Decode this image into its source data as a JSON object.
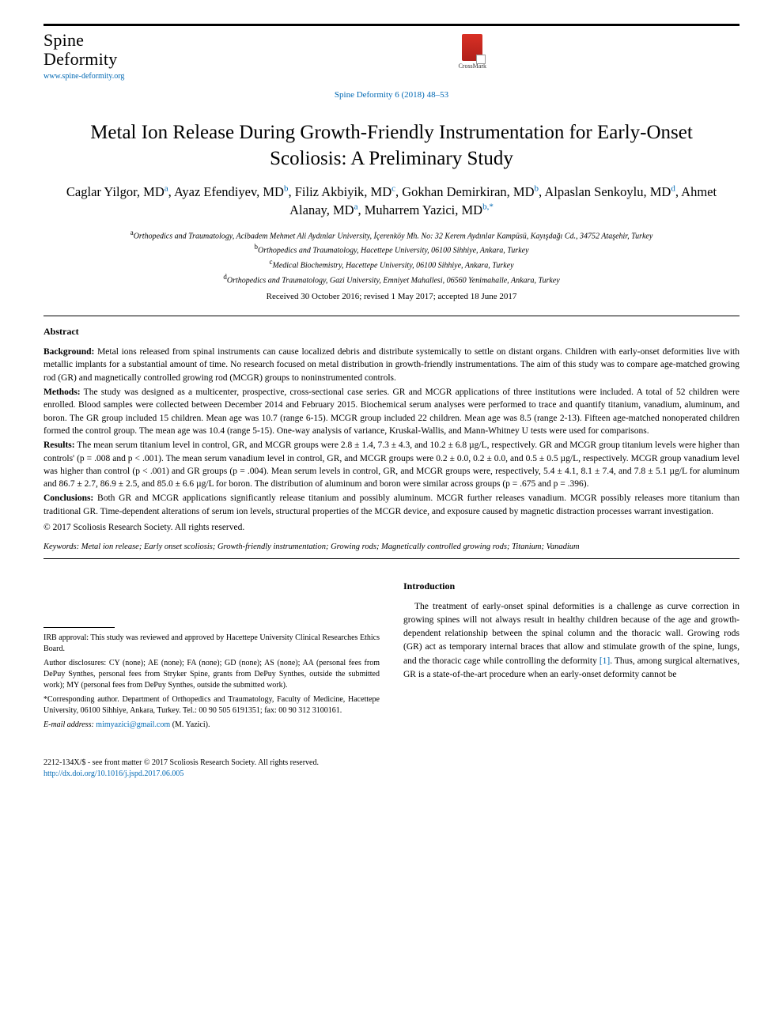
{
  "journal": {
    "name_line1": "Spine",
    "name_line2": "Deformity",
    "url": "www.spine-deformity.org"
  },
  "crossmark": {
    "label": "CrossMark"
  },
  "citation": "Spine Deformity 6 (2018) 48–53",
  "title": "Metal Ion Release During Growth-Friendly Instrumentation for Early-Onset Scoliosis: A Preliminary Study",
  "authors": [
    {
      "name": "Caglar Yilgor, MD",
      "aff": "a"
    },
    {
      "name": "Ayaz Efendiyev, MD",
      "aff": "b"
    },
    {
      "name": "Filiz Akbiyik, MD",
      "aff": "c"
    },
    {
      "name": "Gokhan Demirkiran, MD",
      "aff": "b"
    },
    {
      "name": "Alpaslan Senkoylu, MD",
      "aff": "d"
    },
    {
      "name": "Ahmet Alanay, MD",
      "aff": "a"
    },
    {
      "name": "Muharrem Yazici, MD",
      "aff": "b,*"
    }
  ],
  "affiliations": {
    "a": "Orthopedics and Traumatology, Acibadem Mehmet Ali Aydınlar University, İçerenköy Mh. No: 32 Kerem Aydınlar Kampüsü, Kayışdağı Cd., 34752 Ataşehir, Turkey",
    "b": "Orthopedics and Traumatology, Hacettepe University, 06100 Sihhiye, Ankara, Turkey",
    "c": "Medical Biochemistry, Hacettepe University, 06100 Sihhiye, Ankara, Turkey",
    "d": "Orthopedics and Traumatology, Gazi University, Emniyet Mahallesi, 06560 Yenimahalle, Ankara, Turkey"
  },
  "history": "Received 30 October 2016; revised 1 May 2017; accepted 18 June 2017",
  "abstract": {
    "label": "Abstract",
    "background_label": "Background:",
    "background": " Metal ions released from spinal instruments can cause localized debris and distribute systemically to settle on distant organs. Children with early-onset deformities live with metallic implants for a substantial amount of time. No research focused on metal distribution in growth-friendly instrumentations. The aim of this study was to compare age-matched growing rod (GR) and magnetically controlled growing rod (MCGR) groups to noninstrumented controls.",
    "methods_label": "Methods:",
    "methods": " The study was designed as a multicenter, prospective, cross-sectional case series. GR and MCGR applications of three institutions were included. A total of 52 children were enrolled. Blood samples were collected between December 2014 and February 2015. Biochemical serum analyses were performed to trace and quantify titanium, vanadium, aluminum, and boron. The GR group included 15 children. Mean age was 10.7 (range 6-15). MCGR group included 22 children. Mean age was 8.5 (range 2-13). Fifteen age-matched nonoperated children formed the control group. The mean age was 10.4 (range 5-15). One-way analysis of variance, Kruskal-Wallis, and Mann-Whitney U tests were used for comparisons.",
    "results_label": "Results:",
    "results": " The mean serum titanium level in control, GR, and MCGR groups were 2.8 ± 1.4, 7.3 ± 4.3, and 10.2 ± 6.8 µg/L, respectively. GR and MCGR group titanium levels were higher than controls' (p = .008 and p < .001). The mean serum vanadium level in control, GR, and MCGR groups were 0.2 ± 0.0, 0.2 ± 0.0, and 0.5 ± 0.5 µg/L, respectively. MCGR group vanadium level was higher than control (p < .001) and GR groups (p = .004). Mean serum levels in control, GR, and MCGR groups were, respectively, 5.4 ± 4.1, 8.1 ± 7.4, and 7.8 ± 5.1 µg/L for aluminum and 86.7 ± 2.7, 86.9 ± 2.5, and 85.0 ± 6.6 µg/L for boron. The distribution of aluminum and boron were similar across groups (p = .675 and p = .396).",
    "conclusions_label": "Conclusions:",
    "conclusions": " Both GR and MCGR applications significantly release titanium and possibly aluminum. MCGR further releases vanadium. MCGR possibly releases more titanium than traditional GR. Time-dependent alterations of serum ion levels, structural properties of the MCGR device, and exposure caused by magnetic distraction processes warrant investigation.",
    "copyright": "© 2017 Scoliosis Research Society. All rights reserved."
  },
  "keywords": {
    "label": "Keywords:",
    "text": " Metal ion release; Early onset scoliosis; Growth-friendly instrumentation; Growing rods; Magnetically controlled growing rods; Titanium; Vanadium"
  },
  "footnotes": {
    "irb": "IRB approval: This study was reviewed and approved by Hacettepe University Clinical Researches Ethics Board.",
    "disclosures": "Author disclosures: CY (none); AE (none); FA (none); GD (none); AS (none); AA (personal fees from DePuy Synthes, personal fees from Stryker Spine, grants from DePuy Synthes, outside the submitted work); MY (personal fees from DePuy Synthes, outside the submitted work).",
    "corresponding": "*Corresponding author. Department of Orthopedics and Traumatology, Faculty of Medicine, Hacettepe University, 06100 Sihhiye, Ankara, Turkey. Tel.: 00 90 505 6191351; fax: 00 90 312 3100161.",
    "email_label": "E-mail address:",
    "email": " mimyazici@gmail.com",
    "email_suffix": " (M. Yazici)."
  },
  "introduction": {
    "heading": "Introduction",
    "body": "The treatment of early-onset spinal deformities is a challenge as curve correction in growing spines will not always result in healthy children because of the age and growth-dependent relationship between the spinal column and the thoracic wall. Growing rods (GR) act as temporary internal braces that allow and stimulate growth of the spine, lungs, and the thoracic cage while controlling the deformity [1]. Thus, among surgical alternatives, GR is a state-of-the-art procedure when an early-onset deformity cannot be"
  },
  "footer": {
    "issn": "2212-134X/$ - see front matter © 2017 Scoliosis Research Society. All rights reserved.",
    "doi": "http://dx.doi.org/10.1016/j.jspd.2017.06.005"
  },
  "colors": {
    "link": "#0068b3",
    "text": "#000000",
    "crossmark_red": "#d93025"
  }
}
